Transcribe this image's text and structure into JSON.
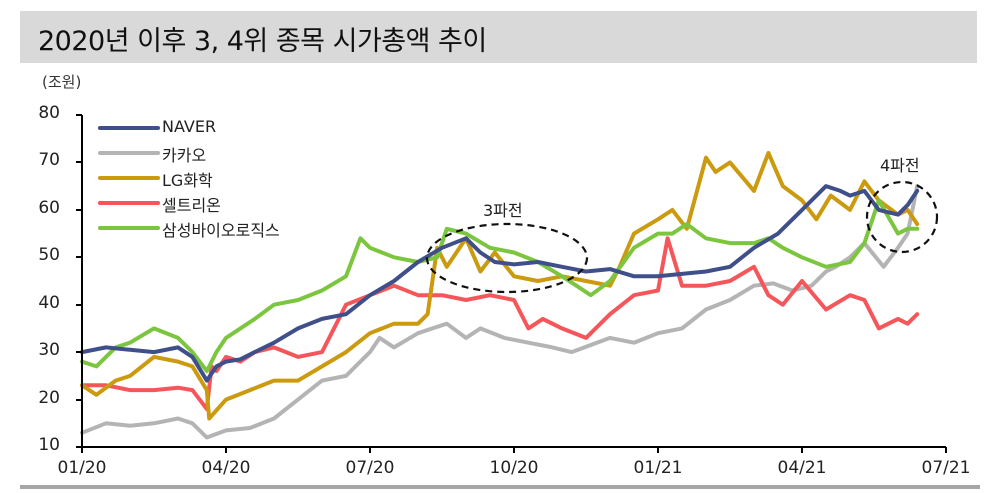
{
  "header": {
    "title": "2020년 이후 3, 4위 종목 시가총액 추이"
  },
  "axis": {
    "unit_label": "(조원)",
    "y_ticks": [
      "80",
      "70",
      "60",
      "50",
      "40",
      "30",
      "20",
      "10"
    ],
    "x_ticks": [
      "01/20",
      "04/20",
      "07/20",
      "10/20",
      "01/21",
      "04/21",
      "07/21"
    ]
  },
  "legend": [
    {
      "label": "NAVER",
      "color": "#3f4f8a"
    },
    {
      "label": "카카오",
      "color": "#b4b4b4"
    },
    {
      "label": "LG화학",
      "color": "#cc9a0f"
    },
    {
      "label": "셀트리온",
      "color": "#f5565a"
    },
    {
      "label": "삼성바이오로직스",
      "color": "#7cc63f"
    }
  ],
  "annotations": {
    "three_way": "3파전",
    "four_way": "4파전"
  },
  "chart_data": {
    "type": "line",
    "title": "2020년 이후 3, 4위 종목 시가총액 추이",
    "xlabel": "",
    "ylabel": "(조원)",
    "ylim": [
      10,
      80
    ],
    "x_ticks": [
      "01/20",
      "04/20",
      "07/20",
      "10/20",
      "01/21",
      "04/21",
      "07/21"
    ],
    "x_unit": "months since 01/20",
    "grid": false,
    "legend_position": "upper-left",
    "series": [
      {
        "name": "NAVER",
        "color": "#3f4f8a",
        "x": [
          0,
          0.5,
          1,
          1.5,
          2,
          2.3,
          2.6,
          2.8,
          3,
          3.3,
          3.6,
          4,
          4.5,
          5,
          5.5,
          6,
          6.5,
          7,
          7.5,
          8,
          8.3,
          8.6,
          9,
          9.5,
          10,
          10.5,
          11,
          11.5,
          12,
          12.5,
          13,
          13.5,
          14,
          14.5,
          15,
          15.5,
          15.8,
          16,
          16.3,
          16.6,
          17,
          17.2,
          17.4
        ],
        "values": [
          30,
          31,
          30.5,
          30,
          31,
          29,
          24,
          27,
          28,
          28.5,
          30,
          32,
          35,
          37,
          38,
          42,
          45,
          49,
          52,
          54,
          51,
          49,
          48.5,
          49,
          48,
          47,
          47.5,
          46,
          46,
          46.5,
          47,
          48,
          52,
          55,
          60,
          65,
          64,
          63,
          64,
          60,
          59,
          61,
          64
        ]
      },
      {
        "name": "카카오",
        "color": "#b4b4b4",
        "x": [
          0,
          0.5,
          1,
          1.5,
          2,
          2.3,
          2.6,
          3,
          3.5,
          4,
          4.5,
          5,
          5.5,
          5.8,
          6,
          6.2,
          6.5,
          7,
          7.3,
          7.6,
          8,
          8.3,
          8.8,
          9.3,
          9.8,
          10.2,
          10.6,
          11,
          11.5,
          12,
          12.5,
          13,
          13.5,
          14,
          14.4,
          14.8,
          15.2,
          15.5,
          15.7,
          16,
          16.3,
          16.7,
          17,
          17.2,
          17.4
        ],
        "values": [
          13,
          15,
          14.5,
          15,
          16,
          15,
          12,
          13.5,
          14,
          16,
          20,
          24,
          25,
          28,
          30,
          33,
          31,
          34,
          35,
          36,
          33,
          35,
          33,
          32,
          31,
          30,
          31.5,
          33,
          32,
          34,
          35,
          39,
          41,
          44,
          44.5,
          43,
          44,
          47,
          48,
          50,
          53,
          48,
          52,
          55,
          65
        ]
      },
      {
        "name": "LG화학",
        "color": "#cc9a0f",
        "x": [
          0,
          0.3,
          0.7,
          1,
          1.5,
          2,
          2.3,
          2.6,
          2.65,
          3,
          3.5,
          4,
          4.5,
          5,
          5.5,
          6,
          6.5,
          7,
          7.2,
          7.4,
          7.6,
          8,
          8.3,
          8.6,
          9,
          9.5,
          10,
          10.5,
          11,
          11.2,
          11.5,
          12,
          12.3,
          12.6,
          13,
          13.2,
          13.5,
          14,
          14.3,
          14.6,
          15,
          15.3,
          15.6,
          16,
          16.3,
          16.6,
          17,
          17.2,
          17.4
        ],
        "values": [
          23,
          21,
          24,
          25,
          29,
          28,
          27,
          22,
          16,
          20,
          22,
          24,
          24,
          27,
          30,
          34,
          36,
          36,
          38,
          52,
          48,
          54,
          47,
          51,
          46,
          45,
          46,
          45,
          44,
          48,
          55,
          58,
          60,
          56,
          71,
          68,
          70,
          64,
          72,
          65,
          62,
          58,
          63,
          60,
          66,
          62,
          59,
          60,
          57
        ]
      },
      {
        "name": "셀트리온",
        "color": "#f5565a",
        "x": [
          0,
          0.5,
          1,
          1.5,
          2,
          2.3,
          2.6,
          2.7,
          2.8,
          3,
          3.3,
          3.6,
          4,
          4.5,
          5,
          5.5,
          6,
          6.5,
          7,
          7.5,
          8,
          8.5,
          9,
          9.3,
          9.6,
          10,
          10.5,
          11,
          11.5,
          12,
          12.2,
          12.5,
          13,
          13.5,
          14,
          14.3,
          14.6,
          15,
          15.5,
          16,
          16.3,
          16.6,
          17,
          17.2,
          17.4
        ],
        "values": [
          23,
          23,
          22,
          22,
          22.5,
          22,
          18,
          27,
          26,
          29,
          28,
          30,
          31,
          29,
          30,
          40,
          42,
          44,
          42,
          42,
          41,
          42,
          41,
          35,
          37,
          35,
          33,
          38,
          42,
          43,
          54,
          44,
          44,
          45,
          48,
          42,
          40,
          45,
          39,
          42,
          41,
          35,
          37,
          36,
          38
        ]
      },
      {
        "name": "삼성바이오로직스",
        "color": "#7cc63f",
        "x": [
          0,
          0.3,
          0.7,
          1,
          1.5,
          2,
          2.3,
          2.6,
          2.8,
          3,
          3.3,
          3.6,
          4,
          4.5,
          5,
          5.5,
          5.8,
          6,
          6.5,
          7,
          7.4,
          7.6,
          8,
          8.5,
          9,
          9.5,
          10,
          10.3,
          10.6,
          11,
          11.5,
          12,
          12.3,
          12.6,
          13,
          13.5,
          14,
          14.3,
          14.6,
          15,
          15.5,
          16,
          16.3,
          16.6,
          17,
          17.2,
          17.4
        ],
        "values": [
          28,
          27,
          31,
          32,
          35,
          33,
          30,
          26,
          30,
          33,
          35,
          37,
          40,
          41,
          43,
          46,
          54,
          52,
          50,
          49,
          50,
          56,
          55,
          52,
          51,
          49,
          46,
          44,
          42,
          45,
          52,
          55,
          55,
          57,
          54,
          53,
          53,
          54,
          52,
          50,
          48,
          49,
          53,
          62,
          55,
          56,
          56
        ]
      }
    ]
  }
}
